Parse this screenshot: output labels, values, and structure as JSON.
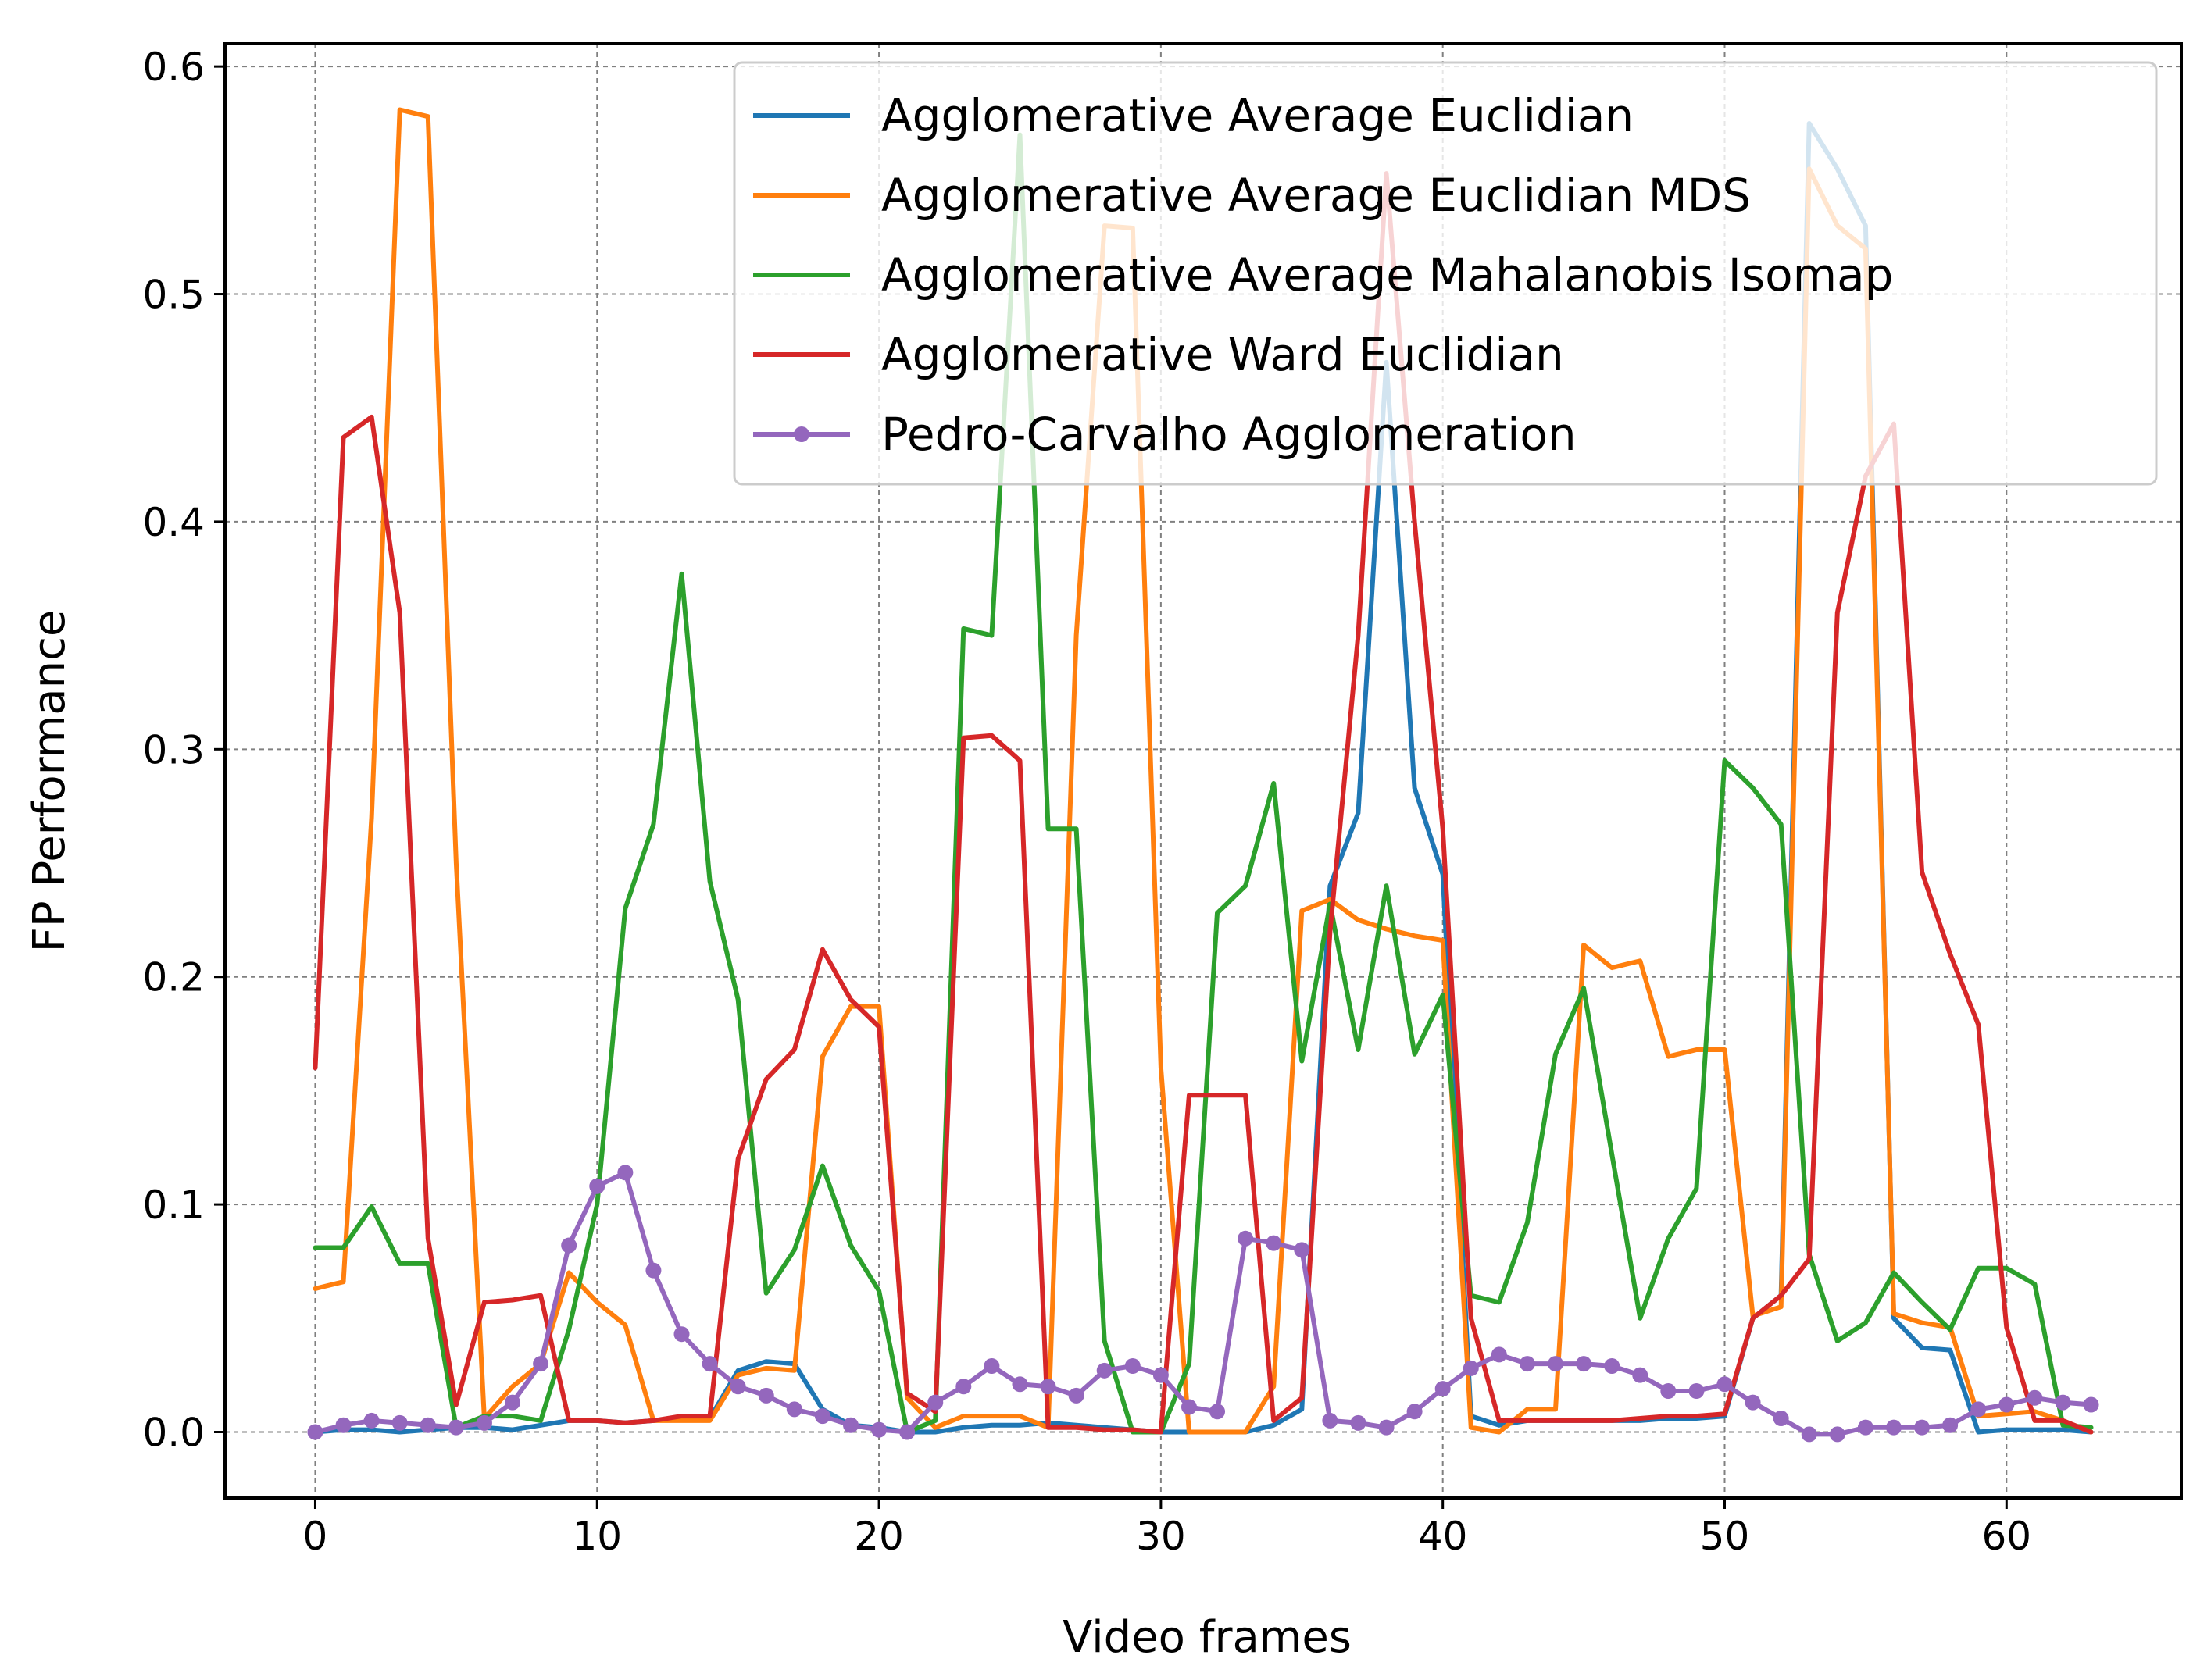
{
  "chart_data": {
    "type": "line",
    "title": "",
    "xlabel": "Video frames",
    "ylabel": "FP Performance",
    "xlim": [
      -3.2,
      66.2
    ],
    "ylim": [
      -0.029,
      0.61
    ],
    "xticks": [
      0,
      10,
      20,
      30,
      40,
      50,
      60
    ],
    "xtick_labels": [
      "0",
      "10",
      "20",
      "30",
      "40",
      "50",
      "60"
    ],
    "yticks": [
      0.0,
      0.1,
      0.2,
      0.3,
      0.4,
      0.5,
      0.6
    ],
    "ytick_labels": [
      "0.0",
      "0.1",
      "0.2",
      "0.3",
      "0.4",
      "0.5",
      "0.6"
    ],
    "grid": true,
    "legend_position": "upper right",
    "x": [
      0,
      1,
      2,
      3,
      4,
      5,
      6,
      7,
      8,
      9,
      10,
      11,
      12,
      13,
      14,
      15,
      16,
      17,
      18,
      19,
      20,
      21,
      22,
      23,
      24,
      25,
      26,
      27,
      28,
      29,
      30,
      31,
      32,
      33,
      34,
      35,
      36,
      37,
      38,
      39,
      40,
      41,
      42,
      43,
      44,
      45,
      46,
      47,
      48,
      49,
      50,
      51,
      52,
      53,
      54,
      55,
      56,
      57,
      58,
      59,
      60,
      61,
      62,
      63
    ],
    "series": [
      {
        "name": "Agglomerative Average Euclidian",
        "color": "#1f77b4",
        "marker": "none",
        "values": [
          0.0,
          0.001,
          0.001,
          0.0,
          0.001,
          0.002,
          0.002,
          0.001,
          0.003,
          0.005,
          0.005,
          0.004,
          0.005,
          0.006,
          0.006,
          0.027,
          0.031,
          0.03,
          0.01,
          0.003,
          0.002,
          0.0,
          0.0,
          0.002,
          0.003,
          0.003,
          0.004,
          0.003,
          0.002,
          0.001,
          0.0,
          0.0,
          0.0,
          0.0,
          0.003,
          0.01,
          0.24,
          0.272,
          0.47,
          0.283,
          0.245,
          0.007,
          0.003,
          0.005,
          0.005,
          0.005,
          0.005,
          0.005,
          0.006,
          0.006,
          0.007,
          0.05,
          0.06,
          0.575,
          0.555,
          0.53,
          0.05,
          0.037,
          0.036,
          0.0,
          0.001,
          0.001,
          0.001,
          0.0
        ]
      },
      {
        "name": "Agglomerative Average Euclidian MDS",
        "color": "#ff7f0e",
        "marker": "none",
        "values": [
          0.063,
          0.066,
          0.27,
          0.581,
          0.578,
          0.25,
          0.006,
          0.02,
          0.03,
          0.07,
          0.057,
          0.047,
          0.005,
          0.005,
          0.005,
          0.025,
          0.028,
          0.027,
          0.165,
          0.187,
          0.187,
          0.015,
          0.002,
          0.007,
          0.007,
          0.007,
          0.002,
          0.35,
          0.53,
          0.529,
          0.16,
          0.0,
          0.0,
          0.0,
          0.02,
          0.229,
          0.234,
          0.225,
          0.221,
          0.218,
          0.216,
          0.002,
          0.0,
          0.01,
          0.01,
          0.214,
          0.204,
          0.207,
          0.165,
          0.168,
          0.168,
          0.051,
          0.055,
          0.555,
          0.53,
          0.52,
          0.052,
          0.048,
          0.046,
          0.007,
          0.008,
          0.009,
          0.005,
          0.0
        ]
      },
      {
        "name": "Agglomerative Average Mahalanobis Isomap",
        "color": "#2ca02c",
        "marker": "none",
        "values": [
          0.081,
          0.081,
          0.099,
          0.074,
          0.074,
          0.002,
          0.007,
          0.007,
          0.005,
          0.045,
          0.1,
          0.23,
          0.267,
          0.377,
          0.242,
          0.19,
          0.061,
          0.08,
          0.117,
          0.082,
          0.062,
          0.0,
          0.005,
          0.353,
          0.35,
          0.57,
          0.265,
          0.265,
          0.04,
          0.0,
          0.0,
          0.03,
          0.228,
          0.24,
          0.285,
          0.163,
          0.232,
          0.168,
          0.24,
          0.166,
          0.192,
          0.06,
          0.057,
          0.092,
          0.166,
          0.195,
          0.122,
          0.05,
          0.085,
          0.107,
          0.295,
          0.283,
          0.267,
          0.078,
          0.04,
          0.048,
          0.07,
          0.057,
          0.045,
          0.072,
          0.072,
          0.065,
          0.003,
          0.002
        ]
      },
      {
        "name": "Agglomerative Ward Euclidian",
        "color": "#d62728",
        "marker": "none",
        "values": [
          0.16,
          0.437,
          0.446,
          0.36,
          0.085,
          0.012,
          0.057,
          0.058,
          0.06,
          0.005,
          0.005,
          0.004,
          0.005,
          0.007,
          0.007,
          0.12,
          0.155,
          0.168,
          0.212,
          0.19,
          0.178,
          0.017,
          0.009,
          0.305,
          0.306,
          0.295,
          0.002,
          0.002,
          0.001,
          0.001,
          0.0,
          0.148,
          0.148,
          0.148,
          0.005,
          0.015,
          0.22,
          0.35,
          0.553,
          0.4,
          0.265,
          0.05,
          0.005,
          0.005,
          0.005,
          0.005,
          0.005,
          0.006,
          0.007,
          0.007,
          0.008,
          0.05,
          0.06,
          0.076,
          0.36,
          0.42,
          0.443,
          0.246,
          0.21,
          0.179,
          0.046,
          0.005,
          0.005,
          0.0
        ]
      },
      {
        "name": "Pedro-Carvalho Agglomeration",
        "color": "#9467bd",
        "marker": "circle",
        "values": [
          0.0,
          0.003,
          0.005,
          0.004,
          0.003,
          0.002,
          0.004,
          0.013,
          0.03,
          0.082,
          0.108,
          0.114,
          0.071,
          0.043,
          0.03,
          0.02,
          0.016,
          0.01,
          0.007,
          0.003,
          0.001,
          0.0,
          0.013,
          0.02,
          0.029,
          0.021,
          0.02,
          0.016,
          0.027,
          0.029,
          0.025,
          0.011,
          0.009,
          0.085,
          0.083,
          0.08,
          0.005,
          0.004,
          0.002,
          0.009,
          0.019,
          0.028,
          0.034,
          0.03,
          0.03,
          0.03,
          0.029,
          0.025,
          0.018,
          0.018,
          0.021,
          0.013,
          0.006,
          -0.001,
          -0.001,
          0.002,
          0.002,
          0.002,
          0.003,
          0.01,
          0.012,
          0.015,
          0.013,
          0.012
        ]
      }
    ]
  }
}
